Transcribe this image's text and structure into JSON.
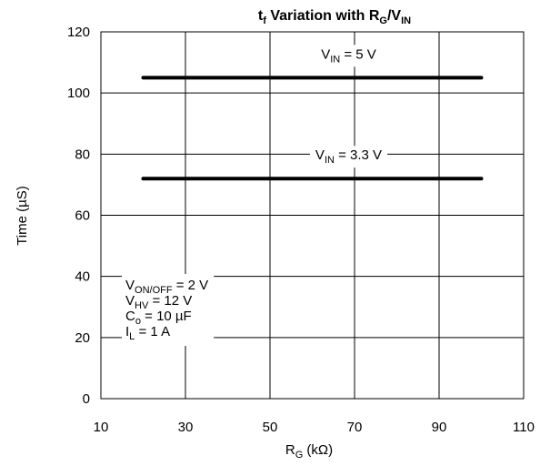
{
  "chart_data": {
    "type": "line",
    "title": {
      "main": "t",
      "main_sub": "f",
      "mid": " Variation with R",
      "mid_sub": "G",
      "sep": "/V",
      "end_sub": "IN"
    },
    "xlabel": {
      "main": "R",
      "sub": "G",
      "unit": " (kΩ)"
    },
    "ylabel": "Time   (µS)",
    "xlim": [
      10,
      110
    ],
    "ylim": [
      0,
      120
    ],
    "x_ticks": [
      10,
      30,
      50,
      70,
      90,
      110
    ],
    "y_ticks": [
      0,
      20,
      40,
      60,
      80,
      100,
      120
    ],
    "grid": true,
    "series": [
      {
        "label_main": "V",
        "label_sub": "IN",
        "label_rest": " = 5 V",
        "x": [
          20,
          100
        ],
        "values": [
          105,
          105
        ]
      },
      {
        "label_main": "V",
        "label_sub": "IN",
        "label_rest": " = 3.3 V",
        "x": [
          20,
          100
        ],
        "values": [
          72,
          72
        ]
      }
    ],
    "conditions": [
      {
        "main": "V",
        "sub": "ON/OFF",
        "rest": " = 2 V"
      },
      {
        "main": "V",
        "sub": "HV",
        "rest": " = 12 V"
      },
      {
        "main": "C",
        "sub": "o",
        "rest": " = 10 µF"
      },
      {
        "main": "I",
        "sub": "L",
        "rest": " = 1 A"
      }
    ],
    "colors": {
      "line": "#000000",
      "grid": "#000000",
      "background": "#ffffff"
    }
  }
}
